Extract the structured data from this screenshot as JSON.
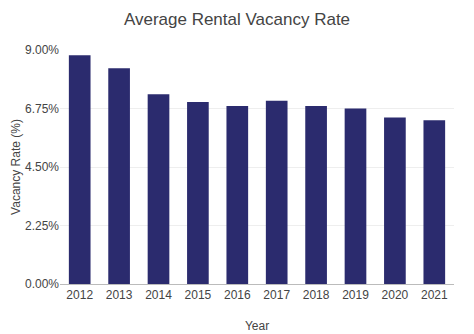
{
  "chart_data": {
    "type": "bar",
    "title": "Average Rental Vacancy Rate",
    "xlabel": "Year",
    "ylabel": "Vacancy Rate (%)",
    "categories": [
      "2012",
      "2013",
      "2014",
      "2015",
      "2016",
      "2017",
      "2018",
      "2019",
      "2020",
      "2021"
    ],
    "values": [
      8.8,
      8.3,
      7.3,
      7.0,
      6.85,
      7.05,
      6.85,
      6.75,
      6.4,
      6.3
    ],
    "color": "#2b2b6e",
    "ylim": [
      0,
      9.0
    ],
    "yticks": [
      {
        "value": 0.0,
        "label": "0.00%"
      },
      {
        "value": 2.25,
        "label": "2.25%"
      },
      {
        "value": 4.5,
        "label": "4.50%"
      },
      {
        "value": 6.75,
        "label": "6.75%"
      },
      {
        "value": 9.0,
        "label": "9.00%"
      }
    ],
    "grid": true
  }
}
